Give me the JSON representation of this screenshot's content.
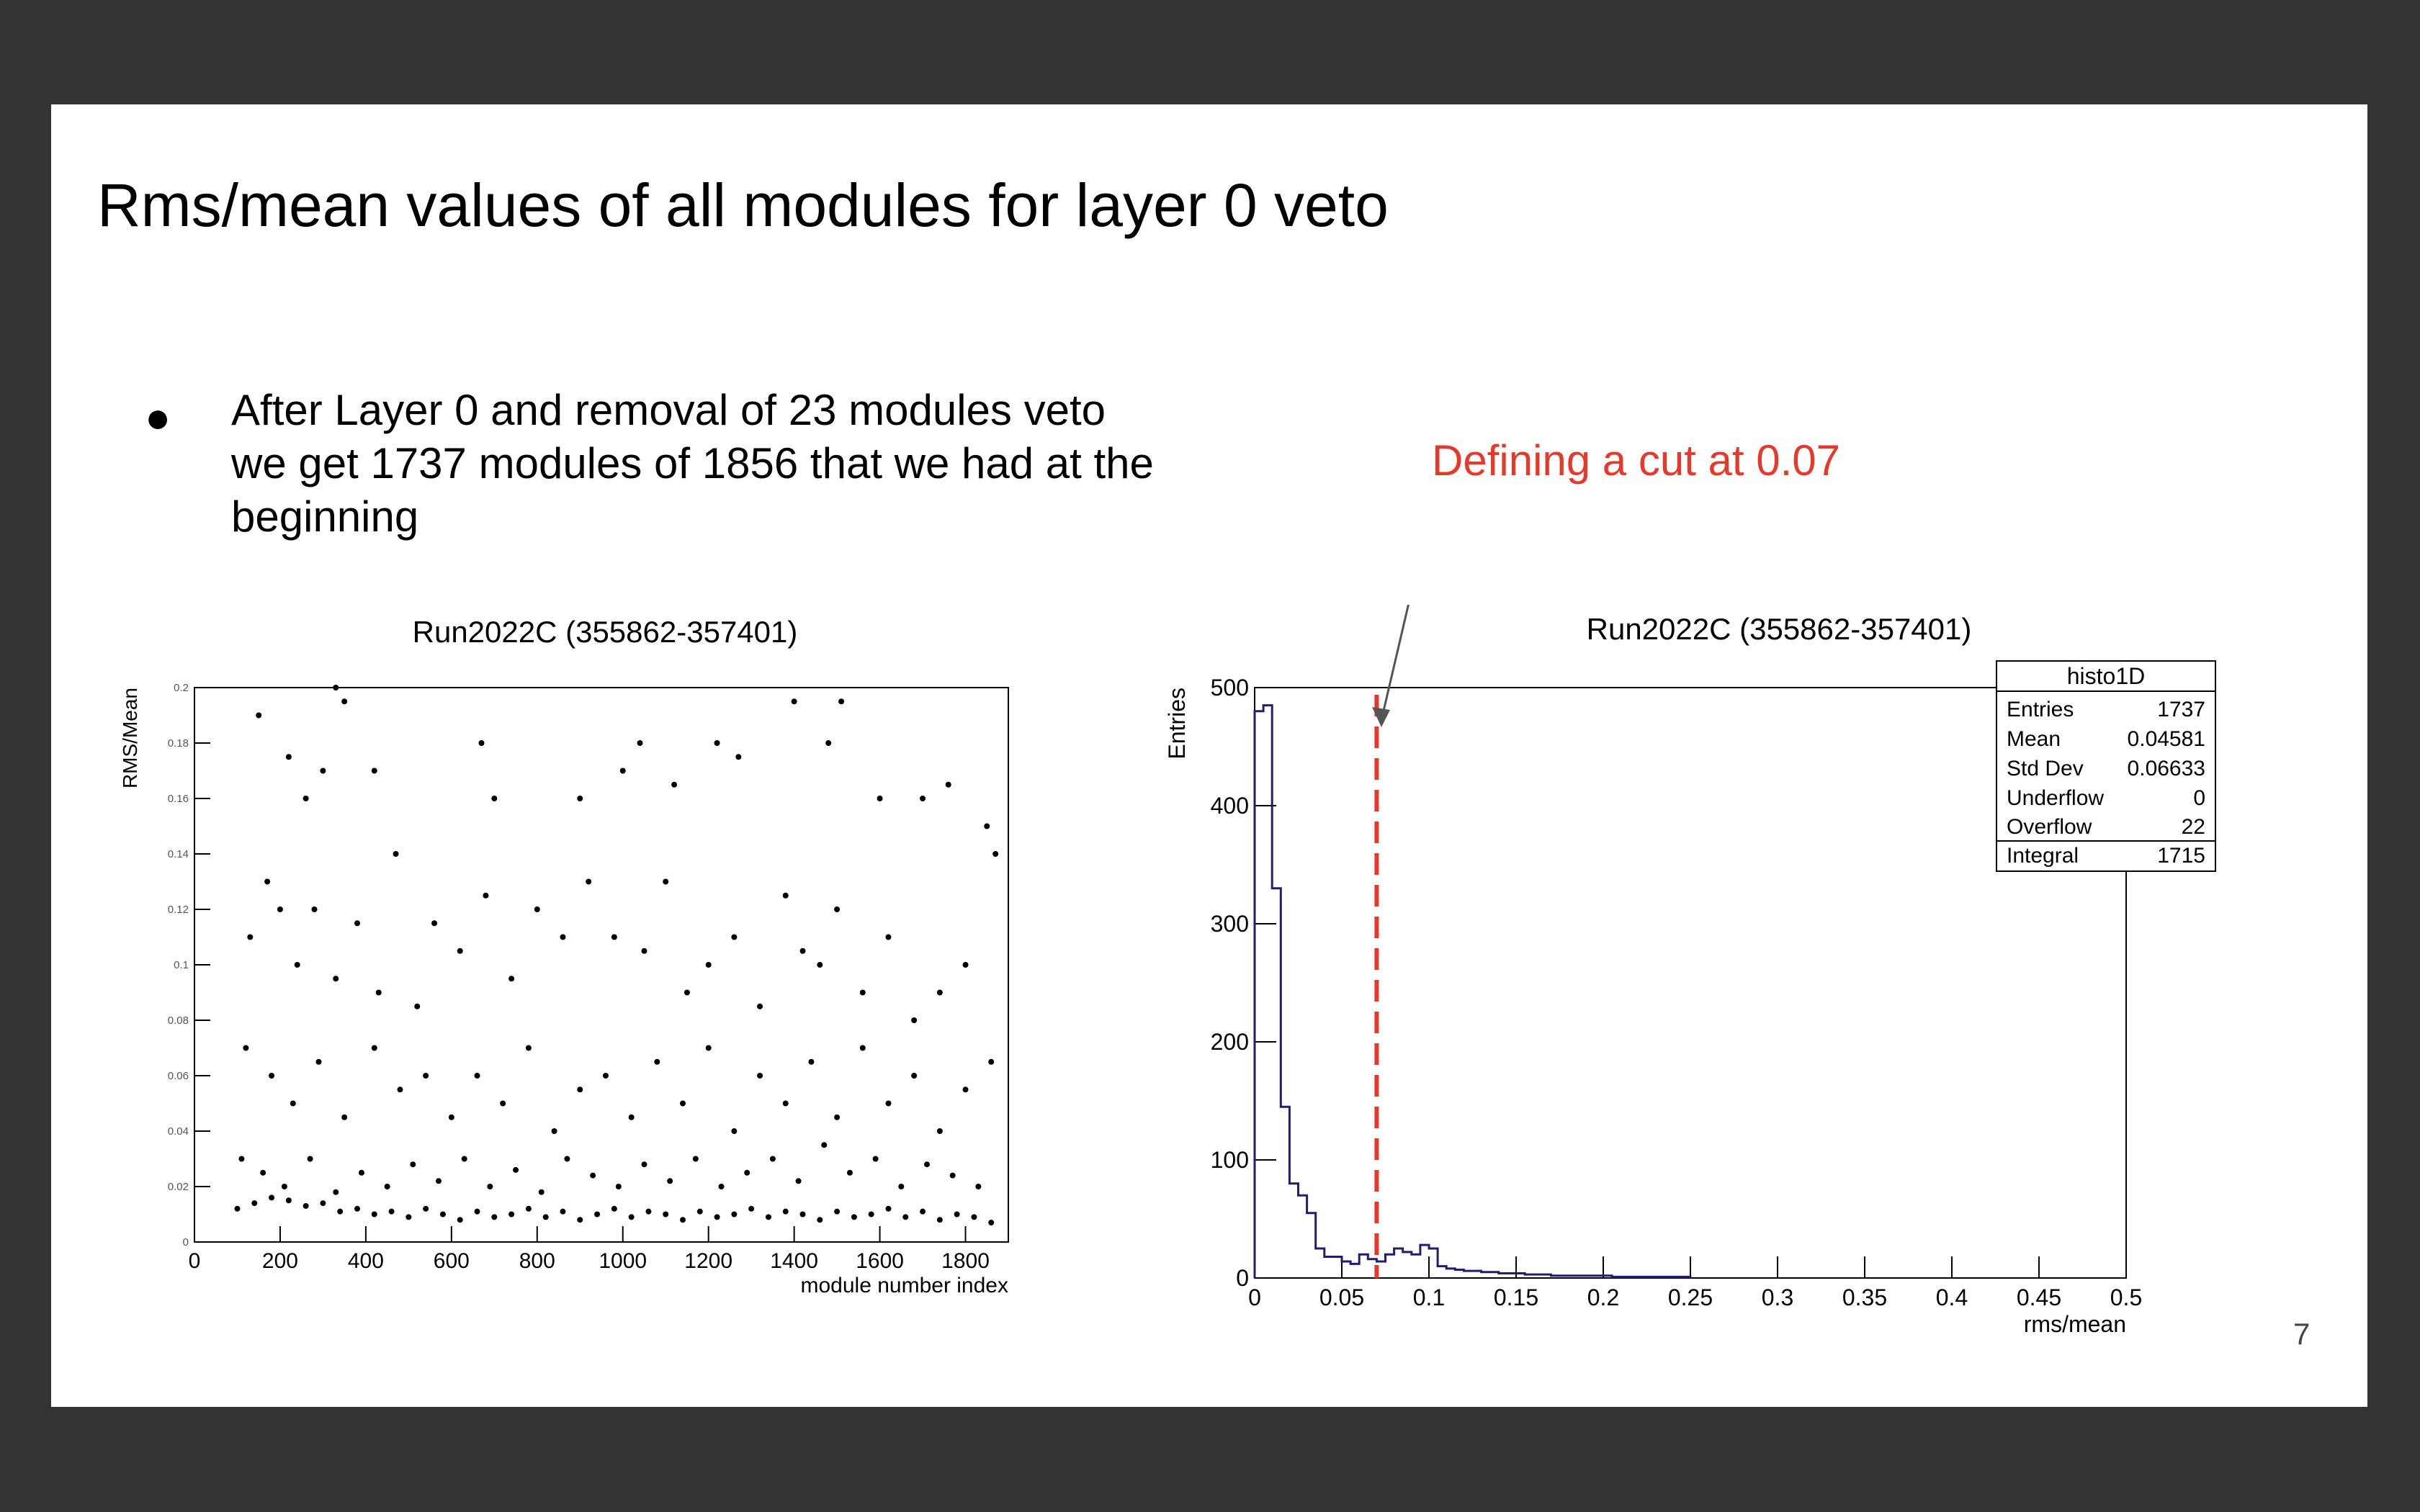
{
  "slide": {
    "title": "Rms/mean values of all modules for layer 0 veto",
    "bullet": "After Layer 0 and removal of 23 modules veto we get 1737 modules of 1856 that we had at the beginning",
    "annotation": "Defining a cut at 0.07",
    "page_number": "7"
  },
  "chart_data": [
    {
      "type": "scatter",
      "title": "Run2022C (355862-357401)",
      "xlabel": "module number index",
      "ylabel": "RMS/Mean",
      "xlim": [
        0,
        1900
      ],
      "ylim": [
        0,
        0.2
      ],
      "xticks": [
        "0",
        "200",
        "400",
        "600",
        "800",
        "1000",
        "1200",
        "1400",
        "1600",
        "1800"
      ],
      "yticks": [
        "0",
        "0.02",
        "0.04",
        "0.06",
        "0.08",
        "0.1",
        "0.12",
        "0.14",
        "0.16",
        "0.18",
        "0.2"
      ],
      "marker_color": "#000000",
      "point_count": 1737,
      "points_estimated": [
        [
          150,
          0.19
        ],
        [
          220,
          0.175
        ],
        [
          260,
          0.16
        ],
        [
          300,
          0.17
        ],
        [
          330,
          0.2
        ],
        [
          350,
          0.195
        ],
        [
          420,
          0.17
        ],
        [
          470,
          0.14
        ],
        [
          670,
          0.18
        ],
        [
          700,
          0.16
        ],
        [
          900,
          0.16
        ],
        [
          1000,
          0.17
        ],
        [
          1040,
          0.18
        ],
        [
          1120,
          0.165
        ],
        [
          1220,
          0.18
        ],
        [
          1270,
          0.175
        ],
        [
          1400,
          0.195
        ],
        [
          1480,
          0.18
        ],
        [
          1510,
          0.195
        ],
        [
          1600,
          0.16
        ],
        [
          1700,
          0.16
        ],
        [
          1760,
          0.165
        ],
        [
          1850,
          0.15
        ],
        [
          1870,
          0.14
        ],
        [
          130,
          0.11
        ],
        [
          170,
          0.13
        ],
        [
          200,
          0.12
        ],
        [
          240,
          0.1
        ],
        [
          280,
          0.12
        ],
        [
          330,
          0.095
        ],
        [
          380,
          0.115
        ],
        [
          430,
          0.09
        ],
        [
          520,
          0.085
        ],
        [
          560,
          0.115
        ],
        [
          620,
          0.105
        ],
        [
          680,
          0.125
        ],
        [
          740,
          0.095
        ],
        [
          800,
          0.12
        ],
        [
          860,
          0.11
        ],
        [
          920,
          0.13
        ],
        [
          980,
          0.11
        ],
        [
          1050,
          0.105
        ],
        [
          1100,
          0.13
        ],
        [
          1150,
          0.09
        ],
        [
          1200,
          0.1
        ],
        [
          1260,
          0.11
        ],
        [
          1320,
          0.085
        ],
        [
          1380,
          0.125
        ],
        [
          1420,
          0.105
        ],
        [
          1460,
          0.1
        ],
        [
          1500,
          0.12
        ],
        [
          1560,
          0.09
        ],
        [
          1620,
          0.11
        ],
        [
          1680,
          0.08
        ],
        [
          1740,
          0.09
        ],
        [
          1800,
          0.1
        ],
        [
          120,
          0.07
        ],
        [
          180,
          0.06
        ],
        [
          230,
          0.05
        ],
        [
          290,
          0.065
        ],
        [
          350,
          0.045
        ],
        [
          420,
          0.07
        ],
        [
          480,
          0.055
        ],
        [
          540,
          0.06
        ],
        [
          600,
          0.045
        ],
        [
          660,
          0.06
        ],
        [
          720,
          0.05
        ],
        [
          780,
          0.07
        ],
        [
          840,
          0.04
        ],
        [
          900,
          0.055
        ],
        [
          960,
          0.06
        ],
        [
          1020,
          0.045
        ],
        [
          1080,
          0.065
        ],
        [
          1140,
          0.05
        ],
        [
          1200,
          0.07
        ],
        [
          1260,
          0.04
        ],
        [
          1320,
          0.06
        ],
        [
          1380,
          0.05
        ],
        [
          1440,
          0.065
        ],
        [
          1500,
          0.045
        ],
        [
          1560,
          0.07
        ],
        [
          1620,
          0.05
        ],
        [
          1680,
          0.06
        ],
        [
          1740,
          0.04
        ],
        [
          1800,
          0.055
        ],
        [
          1860,
          0.065
        ],
        [
          110,
          0.03
        ],
        [
          160,
          0.025
        ],
        [
          210,
          0.02
        ],
        [
          270,
          0.03
        ],
        [
          330,
          0.018
        ],
        [
          390,
          0.025
        ],
        [
          450,
          0.02
        ],
        [
          510,
          0.028
        ],
        [
          570,
          0.022
        ],
        [
          630,
          0.03
        ],
        [
          690,
          0.02
        ],
        [
          750,
          0.026
        ],
        [
          810,
          0.018
        ],
        [
          870,
          0.03
        ],
        [
          930,
          0.024
        ],
        [
          990,
          0.02
        ],
        [
          1050,
          0.028
        ],
        [
          1110,
          0.022
        ],
        [
          1170,
          0.03
        ],
        [
          1230,
          0.02
        ],
        [
          1290,
          0.025
        ],
        [
          1350,
          0.03
        ],
        [
          1410,
          0.022
        ],
        [
          1470,
          0.035
        ],
        [
          1530,
          0.025
        ],
        [
          1590,
          0.03
        ],
        [
          1650,
          0.02
        ],
        [
          1710,
          0.028
        ],
        [
          1770,
          0.024
        ],
        [
          1830,
          0.02
        ],
        [
          100,
          0.012
        ],
        [
          140,
          0.014
        ],
        [
          180,
          0.016
        ],
        [
          220,
          0.015
        ],
        [
          260,
          0.013
        ],
        [
          300,
          0.014
        ],
        [
          340,
          0.011
        ],
        [
          380,
          0.012
        ],
        [
          420,
          0.01
        ],
        [
          460,
          0.011
        ],
        [
          500,
          0.009
        ],
        [
          540,
          0.012
        ],
        [
          580,
          0.01
        ],
        [
          620,
          0.008
        ],
        [
          660,
          0.011
        ],
        [
          700,
          0.009
        ],
        [
          740,
          0.01
        ],
        [
          780,
          0.012
        ],
        [
          820,
          0.009
        ],
        [
          860,
          0.011
        ],
        [
          900,
          0.008
        ],
        [
          940,
          0.01
        ],
        [
          980,
          0.012
        ],
        [
          1020,
          0.009
        ],
        [
          1060,
          0.011
        ],
        [
          1100,
          0.01
        ],
        [
          1140,
          0.008
        ],
        [
          1180,
          0.011
        ],
        [
          1220,
          0.009
        ],
        [
          1260,
          0.01
        ],
        [
          1300,
          0.012
        ],
        [
          1340,
          0.009
        ],
        [
          1380,
          0.011
        ],
        [
          1420,
          0.01
        ],
        [
          1460,
          0.008
        ],
        [
          1500,
          0.011
        ],
        [
          1540,
          0.009
        ],
        [
          1580,
          0.01
        ],
        [
          1620,
          0.012
        ],
        [
          1660,
          0.009
        ],
        [
          1700,
          0.011
        ],
        [
          1740,
          0.008
        ],
        [
          1780,
          0.01
        ],
        [
          1820,
          0.009
        ],
        [
          1860,
          0.007
        ]
      ]
    },
    {
      "type": "bar",
      "title": "Run2022C (355862-357401)",
      "xlabel": "rms/mean",
      "ylabel": "Entries",
      "xlim": [
        0,
        0.5
      ],
      "ylim": [
        0,
        500
      ],
      "xticks": [
        "0",
        "0.05",
        "0.1",
        "0.15",
        "0.2",
        "0.25",
        "0.3",
        "0.35",
        "0.4",
        "0.45",
        "0.5"
      ],
      "yticks": [
        "0",
        "100",
        "200",
        "300",
        "400",
        "500"
      ],
      "bin_width": 0.005,
      "line_color": "#1f1f6e",
      "bin_counts_estimated": [
        480,
        485,
        330,
        145,
        80,
        70,
        55,
        25,
        18,
        18,
        14,
        12,
        20,
        16,
        14,
        20,
        25,
        22,
        20,
        28,
        25,
        10,
        8,
        7,
        6,
        6,
        5,
        5,
        4,
        4,
        4,
        3,
        3,
        3,
        2,
        2,
        2,
        2,
        2,
        2,
        2,
        1,
        1,
        1,
        1,
        1,
        1,
        1,
        1,
        1
      ],
      "cut_line": {
        "x": 0.07,
        "color": "#e53a2b",
        "style": "dashed"
      },
      "stats_box": {
        "title": "histo1D",
        "rows": [
          {
            "label": "Entries",
            "value": "1737"
          },
          {
            "label": "Mean",
            "value": "0.04581"
          },
          {
            "label": "Std Dev",
            "value": "0.06633"
          },
          {
            "label": "Underflow",
            "value": "0"
          },
          {
            "label": "Overflow",
            "value": "22"
          },
          {
            "label": "Integral",
            "value": "1715"
          }
        ]
      }
    }
  ]
}
